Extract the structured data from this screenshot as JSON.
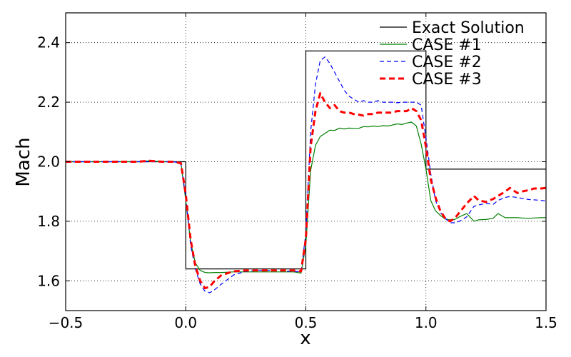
{
  "chart_data": {
    "type": "line",
    "title": "",
    "xlabel": "x",
    "ylabel": "Mach",
    "xlim": [
      -0.5,
      1.5
    ],
    "ylim": [
      1.5,
      2.5
    ],
    "xticks": [
      -0.5,
      0.0,
      0.5,
      1.0,
      1.5
    ],
    "xtick_labels": [
      "−0.5",
      "0.0",
      "0.5",
      "1.0",
      "1.5"
    ],
    "yticks": [
      1.6,
      1.8,
      2.0,
      2.2,
      2.4
    ],
    "ytick_labels": [
      "1.6",
      "1.8",
      "2.0",
      "2.2",
      "2.4"
    ],
    "grid": true,
    "legend_position": "top-right",
    "series": [
      {
        "name": "Exact Solution",
        "color": "#000000",
        "dash": "solid",
        "width": 1.2,
        "x": [
          -0.5,
          0.0,
          0.0,
          0.5,
          0.5,
          1.0,
          1.0,
          1.5
        ],
        "y": [
          2.0,
          2.0,
          1.64,
          1.64,
          2.372,
          2.372,
          1.975,
          1.975
        ]
      },
      {
        "name": "CASE #1",
        "color": "#008000",
        "dash": "solid",
        "width": 1.2,
        "x": [
          -0.5,
          -0.4,
          -0.3,
          -0.2,
          -0.15,
          -0.1,
          -0.05,
          -0.02,
          0.0,
          0.02,
          0.04,
          0.06,
          0.08,
          0.1,
          0.12,
          0.15,
          0.2,
          0.25,
          0.3,
          0.35,
          0.4,
          0.45,
          0.48,
          0.5,
          0.52,
          0.54,
          0.56,
          0.58,
          0.6,
          0.62,
          0.64,
          0.66,
          0.68,
          0.7,
          0.72,
          0.74,
          0.76,
          0.78,
          0.8,
          0.82,
          0.84,
          0.86,
          0.88,
          0.9,
          0.92,
          0.94,
          0.96,
          0.98,
          1.0,
          1.02,
          1.04,
          1.06,
          1.08,
          1.1,
          1.12,
          1.14,
          1.17,
          1.2,
          1.22,
          1.25,
          1.28,
          1.3,
          1.33,
          1.35,
          1.38,
          1.4,
          1.43,
          1.45,
          1.48,
          1.5
        ],
        "y": [
          2.0,
          2.0,
          2.0,
          2.0,
          2.003,
          2.0,
          2.0,
          1.995,
          1.87,
          1.73,
          1.66,
          1.635,
          1.628,
          1.627,
          1.628,
          1.628,
          1.63,
          1.63,
          1.63,
          1.63,
          1.63,
          1.63,
          1.626,
          1.72,
          1.97,
          2.055,
          2.085,
          2.095,
          2.106,
          2.105,
          2.113,
          2.11,
          2.113,
          2.112,
          2.112,
          2.118,
          2.117,
          2.12,
          2.118,
          2.121,
          2.12,
          2.123,
          2.127,
          2.125,
          2.13,
          2.133,
          2.12,
          2.06,
          1.975,
          1.87,
          1.835,
          1.82,
          1.808,
          1.805,
          1.806,
          1.815,
          1.826,
          1.8,
          1.805,
          1.806,
          1.81,
          1.826,
          1.812,
          1.812,
          1.812,
          1.811,
          1.81,
          1.811,
          1.812,
          1.812
        ]
      },
      {
        "name": "CASE #2",
        "color": "#0000ff",
        "dash": "6,4",
        "width": 1.2,
        "x": [
          -0.5,
          -0.4,
          -0.3,
          -0.2,
          -0.15,
          -0.1,
          -0.05,
          -0.02,
          0.0,
          0.02,
          0.04,
          0.06,
          0.08,
          0.1,
          0.12,
          0.15,
          0.2,
          0.25,
          0.3,
          0.35,
          0.4,
          0.45,
          0.48,
          0.5,
          0.52,
          0.54,
          0.56,
          0.58,
          0.6,
          0.62,
          0.64,
          0.66,
          0.68,
          0.7,
          0.72,
          0.74,
          0.76,
          0.78,
          0.8,
          0.82,
          0.84,
          0.86,
          0.88,
          0.9,
          0.92,
          0.94,
          0.96,
          0.98,
          1.0,
          1.02,
          1.04,
          1.06,
          1.08,
          1.1,
          1.12,
          1.14,
          1.17,
          1.2,
          1.22,
          1.25,
          1.28,
          1.3,
          1.33,
          1.35,
          1.38,
          1.4,
          1.43,
          1.45,
          1.48,
          1.5
        ],
        "y": [
          2.0,
          2.0,
          2.0,
          2.0,
          2.0,
          2.0,
          2.0,
          1.995,
          1.88,
          1.72,
          1.64,
          1.59,
          1.565,
          1.56,
          1.57,
          1.59,
          1.62,
          1.632,
          1.635,
          1.635,
          1.633,
          1.632,
          1.63,
          1.76,
          2.1,
          2.26,
          2.34,
          2.352,
          2.33,
          2.3,
          2.27,
          2.24,
          2.22,
          2.21,
          2.2,
          2.205,
          2.2,
          2.2,
          2.205,
          2.2,
          2.2,
          2.2,
          2.198,
          2.2,
          2.2,
          2.2,
          2.2,
          2.19,
          2.08,
          1.96,
          1.87,
          1.83,
          1.81,
          1.795,
          1.795,
          1.8,
          1.815,
          1.85,
          1.855,
          1.86,
          1.857,
          1.87,
          1.88,
          1.883,
          1.88,
          1.877,
          1.873,
          1.872,
          1.87,
          1.868
        ]
      },
      {
        "name": "CASE #3",
        "color": "#ff0000",
        "dash": "8,5",
        "width": 3,
        "x": [
          -0.5,
          -0.4,
          -0.3,
          -0.2,
          -0.15,
          -0.1,
          -0.05,
          -0.02,
          0.0,
          0.02,
          0.04,
          0.06,
          0.08,
          0.1,
          0.12,
          0.15,
          0.2,
          0.25,
          0.3,
          0.35,
          0.4,
          0.45,
          0.48,
          0.5,
          0.52,
          0.54,
          0.56,
          0.58,
          0.6,
          0.62,
          0.64,
          0.66,
          0.68,
          0.7,
          0.72,
          0.74,
          0.76,
          0.78,
          0.8,
          0.82,
          0.84,
          0.86,
          0.88,
          0.9,
          0.92,
          0.94,
          0.96,
          0.98,
          1.0,
          1.02,
          1.04,
          1.06,
          1.08,
          1.1,
          1.12,
          1.14,
          1.17,
          1.2,
          1.22,
          1.25,
          1.28,
          1.3,
          1.33,
          1.35,
          1.38,
          1.4,
          1.43,
          1.45,
          1.48,
          1.5
        ],
        "y": [
          2.0,
          2.0,
          2.0,
          2.0,
          2.003,
          2.0,
          2.0,
          1.995,
          1.89,
          1.74,
          1.65,
          1.6,
          1.575,
          1.58,
          1.6,
          1.62,
          1.632,
          1.635,
          1.635,
          1.635,
          1.635,
          1.635,
          1.632,
          1.74,
          2.05,
          2.17,
          2.23,
          2.2,
          2.18,
          2.19,
          2.17,
          2.165,
          2.165,
          2.16,
          2.158,
          2.155,
          2.16,
          2.16,
          2.165,
          2.165,
          2.165,
          2.165,
          2.17,
          2.17,
          2.17,
          2.18,
          2.17,
          2.14,
          2.05,
          1.94,
          1.88,
          1.835,
          1.81,
          1.8,
          1.81,
          1.83,
          1.86,
          1.885,
          1.87,
          1.865,
          1.875,
          1.885,
          1.9,
          1.912,
          1.895,
          1.9,
          1.905,
          1.91,
          1.91,
          1.912
        ]
      }
    ]
  }
}
